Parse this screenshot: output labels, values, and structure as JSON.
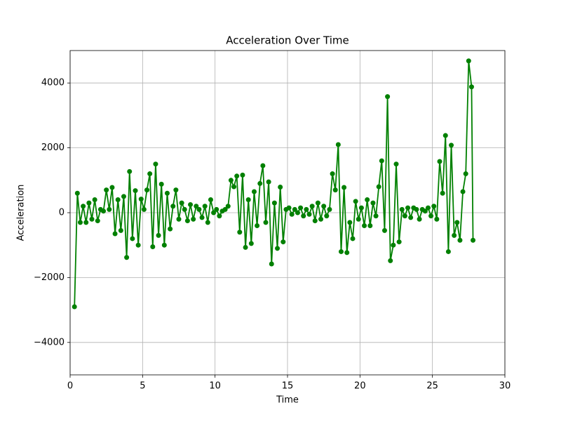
{
  "chart_data": {
    "type": "line",
    "title": "Acceleration Over Time",
    "x_label": "Time",
    "y_label": "Acceleration",
    "x": [
      0.3,
      0.5,
      0.7,
      0.9,
      1.1,
      1.3,
      1.5,
      1.7,
      1.9,
      2.1,
      2.3,
      2.5,
      2.7,
      2.9,
      3.1,
      3.3,
      3.5,
      3.7,
      3.9,
      4.1,
      4.3,
      4.5,
      4.7,
      4.9,
      5.1,
      5.3,
      5.5,
      5.7,
      5.9,
      6.1,
      6.3,
      6.5,
      6.7,
      6.9,
      7.1,
      7.3,
      7.5,
      7.7,
      7.9,
      8.1,
      8.3,
      8.5,
      8.7,
      8.9,
      9.1,
      9.3,
      9.5,
      9.7,
      9.9,
      10.1,
      10.3,
      10.5,
      10.7,
      10.9,
      11.1,
      11.3,
      11.5,
      11.7,
      11.9,
      12.1,
      12.3,
      12.5,
      12.7,
      12.9,
      13.1,
      13.3,
      13.5,
      13.7,
      13.9,
      14.1,
      14.3,
      14.5,
      14.7,
      14.9,
      15.1,
      15.3,
      15.5,
      15.7,
      15.9,
      16.1,
      16.3,
      16.5,
      16.7,
      16.9,
      17.1,
      17.3,
      17.5,
      17.7,
      17.9,
      18.1,
      18.3,
      18.5,
      18.7,
      18.9,
      19.1,
      19.3,
      19.5,
      19.7,
      19.9,
      20.1,
      20.3,
      20.5,
      20.7,
      20.9,
      21.1,
      21.3,
      21.5,
      21.7,
      21.9,
      22.1,
      22.3,
      22.5,
      22.7,
      22.9,
      23.1,
      23.3,
      23.5,
      23.7,
      23.9,
      24.1,
      24.3,
      24.5,
      24.7,
      24.9,
      25.1,
      25.3,
      25.5,
      25.7,
      25.9,
      26.1,
      26.3,
      26.5,
      26.7,
      26.9,
      27.1,
      27.3,
      27.5,
      27.7,
      27.8
    ],
    "series": [
      {
        "color": "#008000",
        "values": [
          -2900,
          600,
          -300,
          200,
          -300,
          300,
          -200,
          400,
          -250,
          100,
          50,
          700,
          100,
          780,
          -650,
          400,
          -550,
          500,
          -1380,
          1270,
          -800,
          680,
          -1000,
          420,
          100,
          700,
          1200,
          -1050,
          1500,
          -700,
          880,
          -1000,
          600,
          -500,
          200,
          700,
          -200,
          300,
          100,
          -250,
          250,
          -200,
          200,
          100,
          -150,
          200,
          -300,
          400,
          0,
          100,
          -100,
          50,
          100,
          200,
          1000,
          800,
          1130,
          -600,
          1160,
          -1070,
          400,
          -950,
          650,
          -400,
          900,
          1450,
          -300,
          950,
          -1580,
          300,
          -1100,
          790,
          -900,
          100,
          150,
          -50,
          100,
          0,
          150,
          -100,
          100,
          -50,
          200,
          -250,
          300,
          -200,
          200,
          -100,
          100,
          1200,
          700,
          2100,
          -1200,
          780,
          -1230,
          -300,
          -800,
          350,
          -200,
          150,
          -400,
          400,
          -400,
          300,
          -100,
          800,
          1600,
          -550,
          3580,
          -1480,
          -1000,
          1500,
          -900,
          100,
          -100,
          150,
          -150,
          150,
          100,
          -200,
          100,
          50,
          150,
          -100,
          200,
          -200,
          1580,
          600,
          2380,
          -1200,
          2080,
          -700,
          -300,
          -850,
          650,
          1200,
          4680,
          3880,
          -850
        ]
      }
    ],
    "xlim": [
      0,
      30
    ],
    "xticks": [
      0,
      5,
      10,
      15,
      20,
      25,
      30
    ],
    "ylim": [
      -5000,
      5000
    ],
    "yticks": [
      {
        "value": -4000,
        "label": "−4000"
      },
      {
        "value": -2000,
        "label": "−2000"
      },
      0,
      2000,
      4000
    ],
    "grid": true
  }
}
